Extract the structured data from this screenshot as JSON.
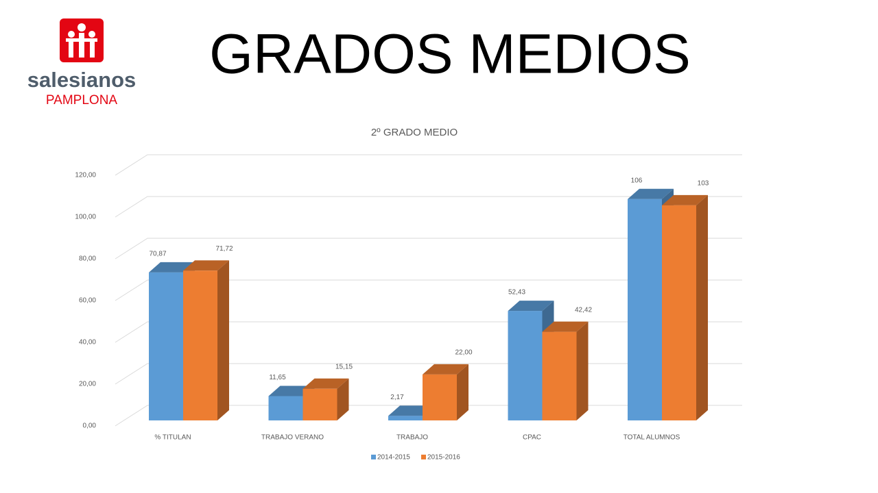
{
  "logo": {
    "name": "salesianos",
    "place": "PAMPLONA"
  },
  "title": "GRADOS MEDIOS",
  "chart_data": {
    "type": "bar3d",
    "title": "2º GRADO MEDIO",
    "categories": [
      "% TITULAN",
      "TRABAJO VERANO",
      "TRABAJO",
      "CPAC",
      "TOTAL ALUMNOS"
    ],
    "series": [
      {
        "name": "2014-2015",
        "color": "#5b9bd5",
        "values": [
          70.87,
          11.65,
          2.17,
          52.43,
          106
        ],
        "value_labels": [
          "70,87",
          "11,65",
          "2,17",
          "52,43",
          "106"
        ]
      },
      {
        "name": "2015-2016",
        "color": "#ed7d31",
        "values": [
          71.72,
          15.15,
          22.0,
          42.42,
          103
        ],
        "value_labels": [
          "71,72",
          "15,15",
          "22,00",
          "42,42",
          "103"
        ]
      }
    ],
    "ylim": [
      0,
      120
    ],
    "yticks": [
      {
        "value": 0,
        "label": "0,00"
      },
      {
        "value": 20,
        "label": "20,00"
      },
      {
        "value": 40,
        "label": "40,00"
      },
      {
        "value": 60,
        "label": "60,00"
      },
      {
        "value": 80,
        "label": "80,00"
      },
      {
        "value": 100,
        "label": "100,00"
      },
      {
        "value": 120,
        "label": "120,00"
      }
    ],
    "grid": true,
    "legend": "bottom"
  }
}
